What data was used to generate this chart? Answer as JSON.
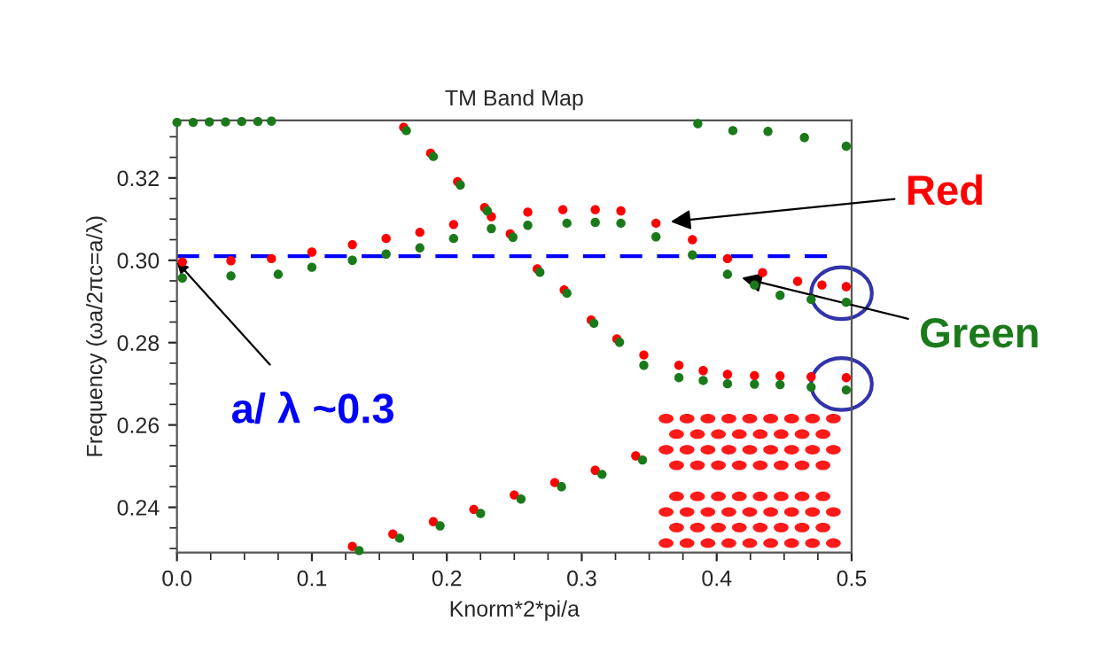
{
  "chart_data": {
    "type": "scatter",
    "title": "TM Band Map",
    "xlabel": "Knorm*2*pi/a",
    "ylabel": "Frequency (ωa/2πc=a/λ)",
    "xlim": [
      0,
      0.5
    ],
    "xticks": [
      {
        "value": 0,
        "label": "0.0"
      },
      0.1,
      0.2,
      0.3,
      0.4,
      0.5
    ],
    "ylim": [
      0.229,
      0.334
    ],
    "yticks": [
      0.24,
      0.26,
      0.28,
      {
        "value": 0.3,
        "label": "0.30"
      },
      0.32
    ],
    "grid": false,
    "legend": false,
    "marker": "circle",
    "series": [
      {
        "name": "Red",
        "color": "#ff0000",
        "x": [
          0.004,
          0.04,
          0.07,
          0.1,
          0.13,
          0.155,
          0.18,
          0.205,
          0.233,
          0.26,
          0.286,
          0.31,
          0.329,
          0.355,
          0.382,
          0.408,
          0.434,
          0.46,
          0.478,
          0.496,
          0.168,
          0.188,
          0.208,
          0.228,
          0.247,
          0.267,
          0.287,
          0.307,
          0.326,
          0.346,
          0.372,
          0.39,
          0.408,
          0.428,
          0.447,
          0.47,
          0.496,
          0.13,
          0.16,
          0.19,
          0.22,
          0.25,
          0.28,
          0.31,
          0.34
        ],
        "values": [
          0.2996,
          0.2999,
          0.3004,
          0.302,
          0.3038,
          0.3053,
          0.3068,
          0.3087,
          0.3106,
          0.3117,
          0.3123,
          0.3123,
          0.312,
          0.309,
          0.305,
          0.3004,
          0.297,
          0.2949,
          0.294,
          0.2936,
          0.3323,
          0.326,
          0.3191,
          0.3128,
          0.3064,
          0.2979,
          0.2928,
          0.2855,
          0.2809,
          0.277,
          0.2745,
          0.2732,
          0.2723,
          0.272,
          0.2719,
          0.2717,
          0.2715,
          0.2305,
          0.2335,
          0.2365,
          0.2395,
          0.243,
          0.246,
          0.249,
          0.2525
        ]
      },
      {
        "name": "Green",
        "color": "#1a7a1a",
        "x": [
          0.004,
          0.04,
          0.075,
          0.1,
          0.13,
          0.155,
          0.18,
          0.205,
          0.233,
          0.26,
          0.289,
          0.31,
          0.329,
          0.355,
          0.382,
          0.408,
          0.428,
          0.447,
          0.47,
          0.496,
          0.17,
          0.19,
          0.21,
          0.23,
          0.249,
          0.269,
          0.289,
          0.309,
          0.328,
          0.346,
          0.372,
          0.39,
          0.408,
          0.428,
          0.447,
          0.47,
          0.496,
          0.135,
          0.165,
          0.195,
          0.225,
          0.255,
          0.285,
          0.315,
          0.345,
          0.0,
          0.012,
          0.024,
          0.036,
          0.048,
          0.06,
          0.07,
          0.386,
          0.412,
          0.438,
          0.465,
          0.496
        ],
        "values": [
          0.2957,
          0.2962,
          0.2966,
          0.2983,
          0.3,
          0.3015,
          0.303,
          0.3053,
          0.3077,
          0.3085,
          0.309,
          0.3092,
          0.309,
          0.3057,
          0.3013,
          0.2966,
          0.294,
          0.2915,
          0.2905,
          0.2898,
          0.3315,
          0.3252,
          0.3183,
          0.312,
          0.3056,
          0.2971,
          0.292,
          0.2847,
          0.2801,
          0.2745,
          0.2715,
          0.2708,
          0.27,
          0.2699,
          0.2698,
          0.2692,
          0.2685,
          0.2295,
          0.2325,
          0.2355,
          0.2385,
          0.242,
          0.245,
          0.248,
          0.2515,
          0.3335,
          0.3335,
          0.3336,
          0.3336,
          0.3337,
          0.3337,
          0.3338,
          0.3332,
          0.3315,
          0.3313,
          0.3298,
          0.3277
        ]
      }
    ],
    "ref_lines": [
      {
        "axis": "y",
        "value": 0.301,
        "color": "#0000ff",
        "line_style": "dashed"
      }
    ],
    "annotations": [
      {
        "text": "a/ λ ~0.3",
        "x": 0.0,
        "y": 0.2996
      }
    ]
  }
}
